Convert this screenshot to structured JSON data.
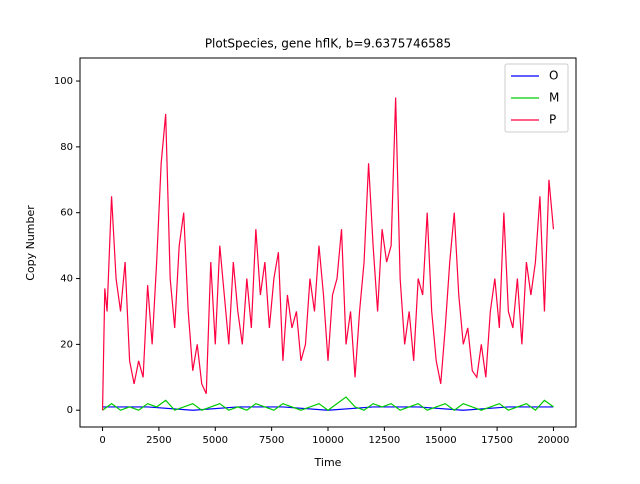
{
  "chart_data": {
    "type": "line",
    "title": "PlotSpecies, gene hflK, b=9.6375746585",
    "x_label": "Time",
    "y_label": "Copy Number",
    "xlim": [
      -1000,
      21000
    ],
    "ylim": [
      -5.1,
      107
    ],
    "xticks": [
      0,
      2500,
      5000,
      7500,
      10000,
      12500,
      15000,
      17500,
      20000
    ],
    "yticks": [
      0,
      20,
      40,
      60,
      80,
      100
    ],
    "legend": "upper right",
    "grid": false,
    "series": [
      {
        "name": "O",
        "color": "#0000ff",
        "x": [
          0,
          2000,
          4000,
          6000,
          8000,
          10000,
          12000,
          14000,
          16000,
          18000,
          20000
        ],
        "values": [
          1,
          1,
          0,
          1,
          1,
          0,
          1,
          1,
          0,
          1,
          1
        ]
      },
      {
        "name": "M",
        "color": "#00cc00",
        "x": [
          0,
          400,
          800,
          1200,
          1600,
          2000,
          2400,
          2800,
          3200,
          3600,
          4000,
          4400,
          4800,
          5200,
          5600,
          6000,
          6400,
          6800,
          7200,
          7600,
          8000,
          8400,
          8800,
          9200,
          9600,
          10000,
          10400,
          10800,
          11200,
          11600,
          12000,
          12400,
          12800,
          13200,
          13600,
          14000,
          14400,
          14800,
          15200,
          15600,
          16000,
          16400,
          16800,
          17200,
          17600,
          18000,
          18400,
          18800,
          19200,
          19600,
          20000
        ],
        "values": [
          0,
          2,
          0,
          1,
          0,
          2,
          1,
          3,
          0,
          1,
          2,
          0,
          1,
          2,
          0,
          1,
          0,
          2,
          1,
          0,
          2,
          1,
          0,
          1,
          2,
          0,
          2,
          4,
          1,
          0,
          2,
          1,
          2,
          0,
          1,
          2,
          0,
          1,
          2,
          0,
          2,
          1,
          0,
          1,
          2,
          0,
          1,
          2,
          0,
          3,
          1
        ]
      },
      {
        "name": "P",
        "color": "#ff0040",
        "x": [
          0,
          100,
          200,
          400,
          600,
          800,
          1000,
          1200,
          1400,
          1600,
          1800,
          2000,
          2200,
          2400,
          2600,
          2800,
          3000,
          3200,
          3400,
          3600,
          3800,
          4000,
          4200,
          4400,
          4600,
          4800,
          5000,
          5200,
          5400,
          5600,
          5800,
          6000,
          6200,
          6400,
          6600,
          6800,
          7000,
          7200,
          7400,
          7600,
          7800,
          8000,
          8200,
          8400,
          8600,
          8800,
          9000,
          9200,
          9400,
          9600,
          9800,
          10000,
          10200,
          10400,
          10600,
          10800,
          11000,
          11200,
          11400,
          11600,
          11800,
          12000,
          12200,
          12400,
          12600,
          12800,
          13000,
          13200,
          13400,
          13600,
          13800,
          14000,
          14200,
          14400,
          14600,
          14800,
          15000,
          15200,
          15400,
          15600,
          15800,
          16000,
          16200,
          16400,
          16600,
          16800,
          17000,
          17200,
          17400,
          17600,
          17800,
          18000,
          18200,
          18400,
          18600,
          18800,
          19000,
          19200,
          19400,
          19600,
          19800,
          20000
        ],
        "values": [
          0,
          37,
          30,
          65,
          40,
          30,
          45,
          15,
          8,
          15,
          10,
          38,
          20,
          45,
          75,
          90,
          40,
          25,
          50,
          60,
          30,
          12,
          20,
          8,
          5,
          45,
          20,
          50,
          35,
          20,
          45,
          30,
          20,
          40,
          25,
          55,
          35,
          45,
          25,
          40,
          48,
          15,
          35,
          25,
          30,
          15,
          20,
          40,
          30,
          50,
          35,
          15,
          35,
          40,
          55,
          20,
          30,
          10,
          30,
          45,
          75,
          50,
          30,
          55,
          45,
          50,
          95,
          40,
          20,
          30,
          15,
          40,
          35,
          60,
          30,
          15,
          8,
          25,
          45,
          60,
          35,
          20,
          25,
          12,
          10,
          20,
          10,
          30,
          40,
          25,
          60,
          30,
          25,
          40,
          20,
          45,
          35,
          45,
          65,
          30,
          70,
          55
        ]
      }
    ]
  }
}
